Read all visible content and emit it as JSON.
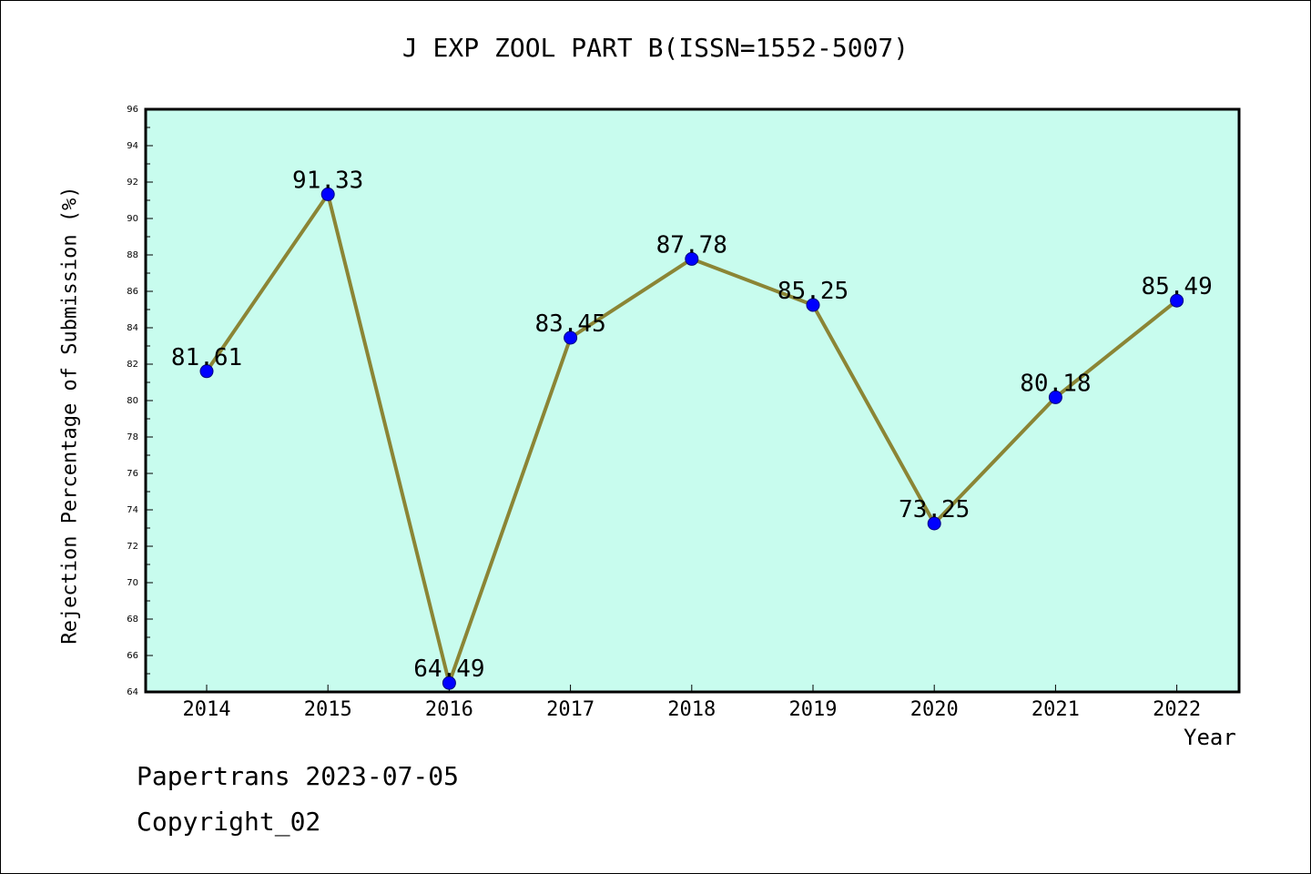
{
  "chart_data": {
    "type": "line",
    "title": "J EXP ZOOL PART B(ISSN=1552-5007)",
    "xlabel": "Year",
    "ylabel": "Rejection Percentage of Submission (%)",
    "categories": [
      "2014",
      "2015",
      "2016",
      "2017",
      "2018",
      "2019",
      "2020",
      "2021",
      "2022"
    ],
    "series": [
      {
        "values": [
          81.61,
          91.33,
          64.49,
          83.45,
          87.78,
          85.25,
          73.25,
          80.18,
          85.49
        ],
        "labels": [
          "81.61",
          "91.33",
          "64.49",
          "83.45",
          "87.78",
          "85.25",
          "73.25",
          "80.18",
          "85.49"
        ]
      }
    ],
    "ylim": [
      64,
      96
    ],
    "yticks": [
      "64",
      "66",
      "68",
      "70",
      "72",
      "74",
      "76",
      "78",
      "80",
      "82",
      "84",
      "86",
      "88",
      "90",
      "92",
      "94",
      "96"
    ],
    "grid": false,
    "colors": {
      "plot_background": "#c8fcee",
      "line": "#8b8535",
      "marker": "#0000ff"
    }
  },
  "footer": {
    "line1": "Papertrans 2023-07-05",
    "line2": "Copyright_02"
  }
}
